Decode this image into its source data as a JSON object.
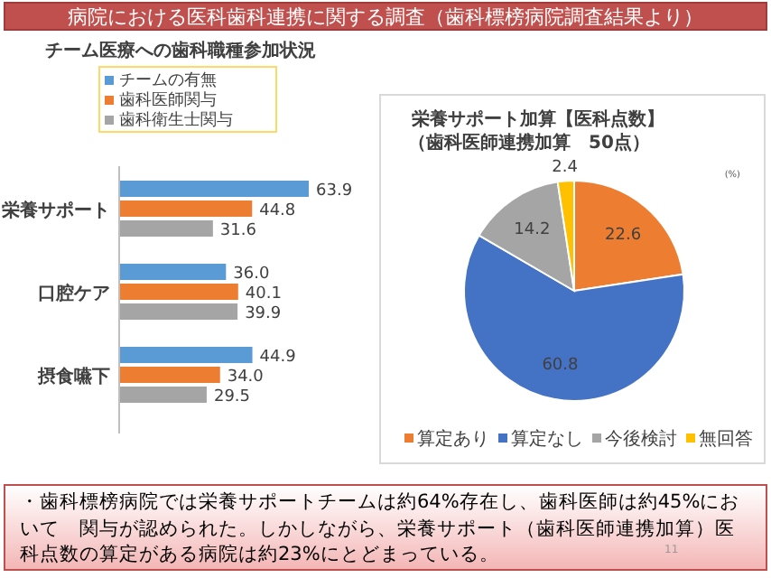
{
  "chart_data": [
    {
      "type": "bar",
      "orientation": "horizontal",
      "title": "チーム医療への歯科職種参加状況",
      "categories": [
        "栄養サポート",
        "口腔ケア",
        "摂食嚥下"
      ],
      "series": [
        {
          "name": "チームの有無",
          "color": "#5b9bd5",
          "values": [
            63.9,
            36.0,
            44.9
          ],
          "value_labels": [
            "63.9",
            "36.0",
            "44.9"
          ]
        },
        {
          "name": "歯科医師関与",
          "color": "#ed7d31",
          "values": [
            44.8,
            40.1,
            34.0
          ],
          "value_labels": [
            "44.8",
            "40.1",
            "34.0"
          ]
        },
        {
          "name": "歯科衛生士関与",
          "color": "#a5a5a5",
          "values": [
            31.6,
            39.9,
            29.5
          ],
          "value_labels": [
            "31.6",
            "39.9",
            "29.5"
          ]
        }
      ],
      "legend": "top",
      "annotations": [
        "病院における医科歯科連携に関する調査（歯科標榜病院調査結果より）",
        "・歯科標榜病院では栄養サポートチームは約64%存在し、歯科医師は約45%において　関与が認められた。しかしながら、栄養サポート（歯科医師連携加算）医科点数の算定がある病院は約23%にとどまっている。",
        "11"
      ]
    },
    {
      "type": "pie",
      "title": "栄養サポート加算【医科点数】",
      "subtitle": "（歯科医師連携加算　50点）",
      "categories": [
        "算定あり",
        "算定なし",
        "今後検討",
        "無回答"
      ],
      "values": [
        22.6,
        60.8,
        14.2,
        2.4
      ],
      "colors": [
        "#ed7d31",
        "#4472c4",
        "#a5a5a5",
        "#ffc000"
      ],
      "data_labels": true,
      "legend": "bottom",
      "annotations": [
        "(%)"
      ]
    }
  ]
}
